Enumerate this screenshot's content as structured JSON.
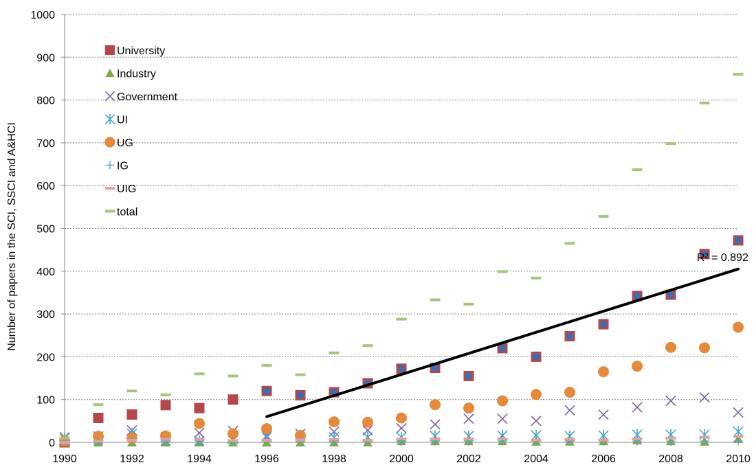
{
  "chart_data": {
    "type": "scatter",
    "title": "",
    "xlabel": "",
    "ylabel": "Number of papers in the SCI, SSCI and A&HCI",
    "xlim": [
      1990,
      2010
    ],
    "ylim": [
      0,
      1000
    ],
    "x_ticks": [
      1990,
      1992,
      1994,
      1996,
      1998,
      2000,
      2002,
      2004,
      2006,
      2008,
      2010
    ],
    "y_ticks": [
      0,
      100,
      200,
      300,
      400,
      500,
      600,
      700,
      800,
      900,
      1000
    ],
    "grid": "horizontal",
    "legend_position": "top-left",
    "x": [
      1990,
      1991,
      1992,
      1993,
      1994,
      1995,
      1996,
      1997,
      1998,
      1999,
      2000,
      2001,
      2002,
      2003,
      2004,
      2005,
      2006,
      2007,
      2008,
      2009,
      2010
    ],
    "series": [
      {
        "name": "University",
        "marker": "square",
        "color": "#b5474a",
        "values": [
          0,
          57,
          65,
          87,
          80,
          100,
          120,
          110,
          117,
          138,
          172,
          174,
          155,
          220,
          200,
          248,
          276,
          342,
          345,
          440,
          472
        ]
      },
      {
        "name": "Industry",
        "marker": "triangle",
        "color": "#7ea84a",
        "values": [
          0,
          0,
          0,
          0,
          0,
          0,
          0,
          0,
          0,
          0,
          3,
          3,
          3,
          3,
          2,
          2,
          3,
          5,
          3,
          2,
          8
        ]
      },
      {
        "name": "Government",
        "marker": "x",
        "color": "#7b5ea6",
        "values": [
          12,
          14,
          28,
          12,
          22,
          27,
          15,
          20,
          25,
          28,
          33,
          42,
          55,
          55,
          50,
          75,
          65,
          82,
          97,
          105,
          70
        ]
      },
      {
        "name": "UI",
        "marker": "asterisk",
        "color": "#3fa6c4",
        "values": [
          10,
          6,
          20,
          4,
          4,
          8,
          12,
          10,
          12,
          12,
          12,
          15,
          15,
          16,
          16,
          15,
          16,
          18,
          18,
          18,
          25
        ]
      },
      {
        "name": "UG",
        "marker": "circle",
        "color": "#e58a3c",
        "values": [
          4,
          14,
          10,
          15,
          44,
          20,
          32,
          16,
          48,
          47,
          57,
          88,
          80,
          97,
          112,
          117,
          165,
          178,
          222,
          221,
          269
        ]
      },
      {
        "name": "IG",
        "marker": "plus",
        "color": "#5aa3c8",
        "values": [
          3,
          3,
          3,
          3,
          3,
          3,
          3,
          3,
          3,
          3,
          3,
          3,
          3,
          3,
          3,
          3,
          3,
          3,
          3,
          3,
          3
        ]
      },
      {
        "name": "UIG",
        "marker": "dash",
        "color": "#e3a0a0",
        "values": [
          0,
          3,
          5,
          7,
          7,
          4,
          5,
          6,
          7,
          5,
          8,
          8,
          8,
          8,
          5,
          7,
          5,
          8,
          10,
          12,
          14
        ]
      },
      {
        "name": "total",
        "marker": "dash",
        "color": "#a4c57a",
        "values": [
          10,
          88,
          120,
          111,
          160,
          155,
          180,
          158,
          209,
          226,
          288,
          333,
          323,
          399,
          384,
          465,
          528,
          637,
          698,
          793,
          860
        ]
      }
    ],
    "highlight": {
      "marker": "diamond",
      "color": "#3c6db0",
      "x_from": 1996,
      "x_to": 2010,
      "follows": "University"
    },
    "trendline": {
      "x": [
        1996,
        2010
      ],
      "y": [
        60,
        405
      ],
      "color": "#000000"
    },
    "annotations": [
      {
        "text": "R² = 0.892",
        "x": 2009.3,
        "y": 440
      }
    ]
  }
}
